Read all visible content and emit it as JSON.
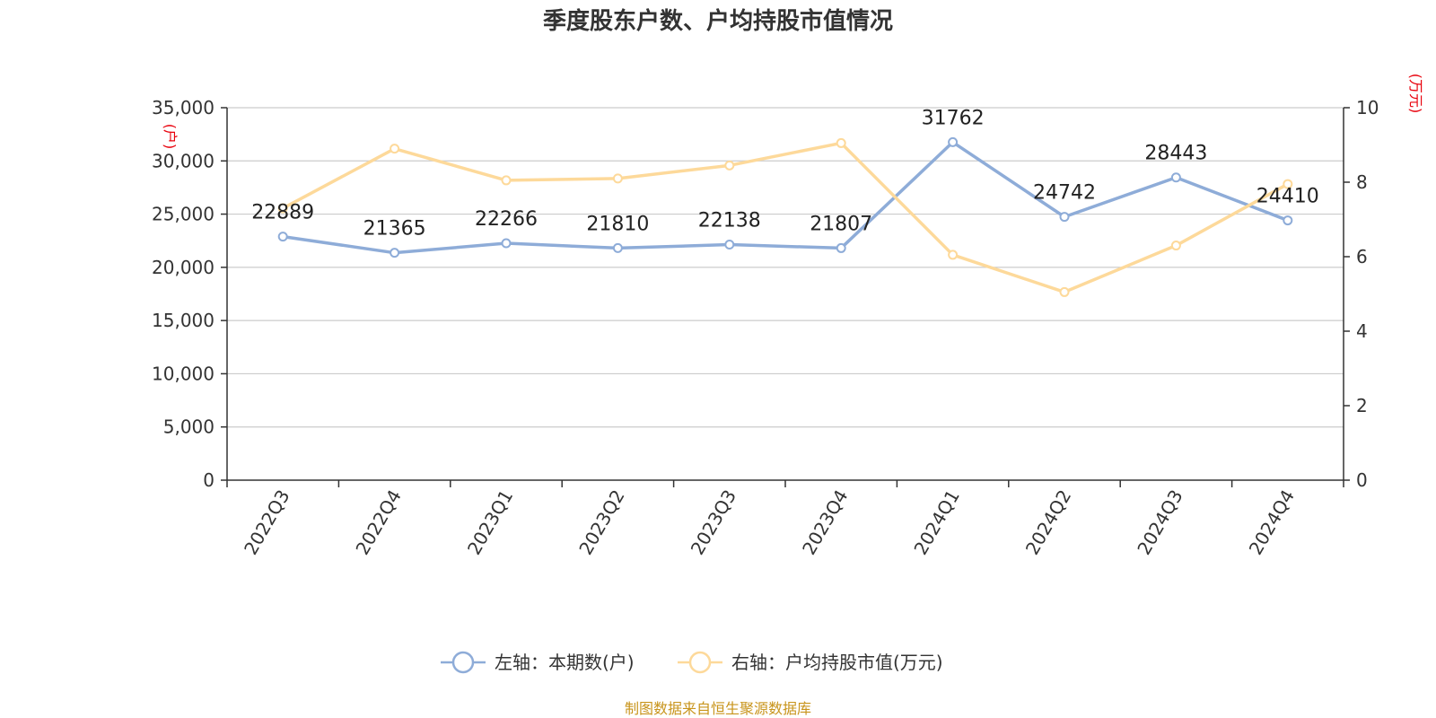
{
  "chart_data": {
    "type": "line",
    "title": "季度股东户数、户均持股市值情况",
    "categories": [
      "2022Q3",
      "2022Q4",
      "2023Q1",
      "2023Q2",
      "2023Q3",
      "2023Q4",
      "2024Q1",
      "2024Q2",
      "2024Q3",
      "2024Q4"
    ],
    "y_left": {
      "unit": "(户)",
      "min": 0,
      "max": 35000,
      "ticks": [
        "0",
        "5,000",
        "10,000",
        "15,000",
        "20,000",
        "25,000",
        "30,000",
        "35,000"
      ]
    },
    "y_right": {
      "unit": "(万元)",
      "min": 0,
      "max": 10,
      "ticks": [
        "0",
        "2",
        "4",
        "6",
        "8",
        "10"
      ]
    },
    "grid": true,
    "legend_position": "bottom",
    "series": [
      {
        "name": "左轴：本期数(户)",
        "axis": "left",
        "color": "#8eacd8",
        "values": [
          22889,
          21365,
          22266,
          21810,
          22138,
          21807,
          31762,
          24742,
          28443,
          24410
        ],
        "labels": [
          "22889",
          "21365",
          "22266",
          "21810",
          "22138",
          "21807",
          "31762",
          "24742",
          "28443",
          "24410"
        ]
      },
      {
        "name": "右轴：户均持股市值(万元)",
        "axis": "right",
        "color": "#fdd99a",
        "values": [
          7.3,
          8.9,
          8.05,
          8.1,
          8.45,
          9.05,
          6.05,
          5.05,
          6.3,
          7.95
        ]
      }
    ],
    "source": "制图数据来自恒生聚源数据库"
  }
}
